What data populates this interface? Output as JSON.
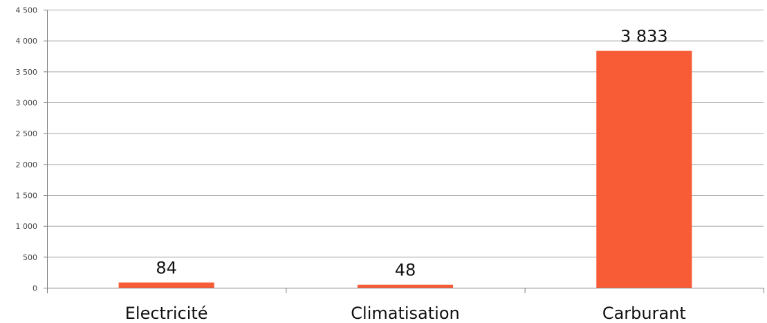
{
  "chart_data": {
    "type": "bar",
    "title": "",
    "xlabel": "",
    "ylabel": "",
    "categories": [
      "Electricité",
      "Climatisation",
      "Carburant"
    ],
    "values": [
      84,
      48,
      3833
    ],
    "data_labels": [
      "84",
      "48",
      "3 833"
    ],
    "ylim": [
      0,
      4500
    ],
    "yticks": [
      0,
      500,
      1000,
      1500,
      2000,
      2500,
      3000,
      3500,
      4000,
      4500
    ],
    "ytick_labels": [
      "0",
      "500",
      "1 000",
      "1 500",
      "2 000",
      "2 500",
      "3 000",
      "3 500",
      "4 000",
      "4 500"
    ],
    "grid": true,
    "legend": "none",
    "colors": {
      "bar": "#F75C36",
      "grid": "#A6A6A6",
      "axis": "#7F7F7F"
    }
  }
}
